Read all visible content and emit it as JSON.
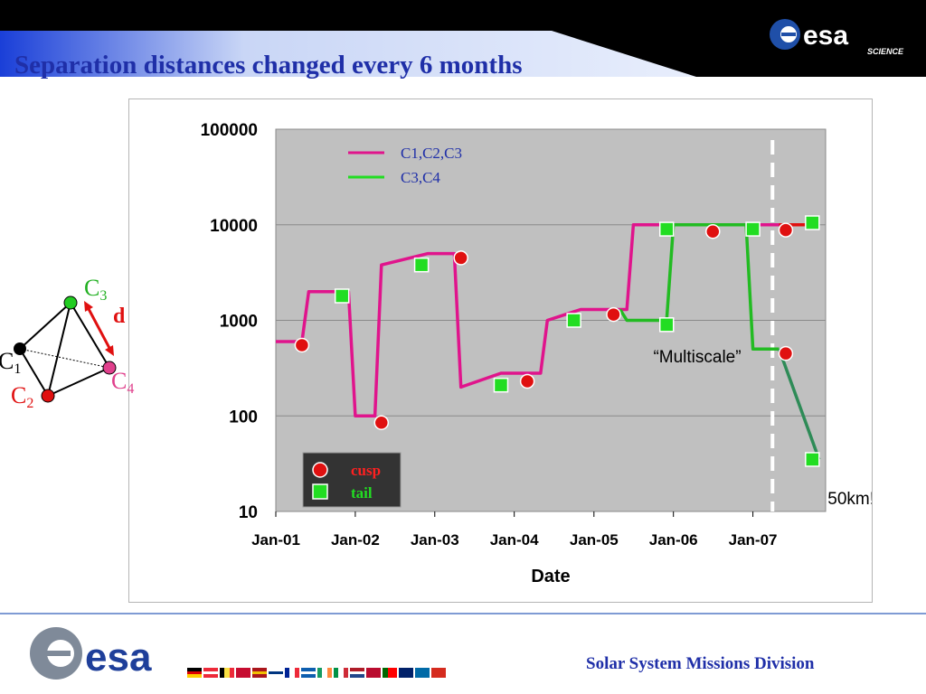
{
  "slide": {
    "title": "Separation distances changed every 6 months",
    "footer": "Solar System Missions Division",
    "logo_text": "esa",
    "logo_subtext": "SCIENCE"
  },
  "tetrahedron": {
    "c1": "C",
    "c1_sub": "1",
    "c2": "C",
    "c2_sub": "2",
    "c3": "C",
    "c3_sub": "3",
    "c4": "C",
    "c4_sub": "4",
    "distance_label": "d",
    "colors": {
      "c1": "#000000",
      "c2": "#e01010",
      "c3": "#22c022",
      "c4": "#e0408c"
    }
  },
  "chart_data": {
    "type": "line",
    "xlabel": "Date",
    "ylabel": "",
    "yscale": "log",
    "ylim": [
      10,
      100000
    ],
    "xlim": [
      "2001-01",
      "2007-12"
    ],
    "x_tick_labels": [
      "Jan-01",
      "Jan-02",
      "Jan-03",
      "Jan-04",
      "Jan-05",
      "Jan-06",
      "Jan-07"
    ],
    "y_tick_labels": [
      "100000",
      "10000",
      "1000",
      "100",
      "10"
    ],
    "y_ticks": [
      100000,
      10000,
      1000,
      100,
      10
    ],
    "plot_background": "#c0c0c0",
    "series": [
      {
        "name": "C1,C2,C3",
        "color": "#e0148c",
        "x": [
          "2001-01-01",
          "2001-05-01",
          "2001-06-01",
          "2001-12-01",
          "2002-01-01",
          "2002-04-01",
          "2002-05-01",
          "2002-12-01",
          "2003-02-01",
          "2003-04-01",
          "2003-05-01",
          "2003-11-01",
          "2004-01-01",
          "2004-05-01",
          "2004-06-01",
          "2004-11-01",
          "2005-05-01",
          "2005-06-01",
          "2005-07-01",
          "2006-01-01",
          "2007-06-01"
        ],
        "y": [
          600,
          600,
          2000,
          2000,
          100,
          100,
          3800,
          5000,
          5000,
          5000,
          200,
          280,
          280,
          280,
          1000,
          1300,
          1300,
          1300,
          10000,
          10000,
          10000
        ]
      },
      {
        "name": "C3,C4",
        "color": "#22bb22",
        "x": [
          "2005-05-01",
          "2005-06-01",
          "2005-12-01",
          "2006-01-01",
          "2006-12-01",
          "2007-01-01",
          "2007-05-01"
        ],
        "y": [
          1300,
          1000,
          1000,
          10000,
          10000,
          500,
          500
        ]
      },
      {
        "name": "",
        "color": "#e01010",
        "x": [
          "2007-05-01",
          "2007-11-01"
        ],
        "y": [
          10000,
          10000
        ]
      },
      {
        "name": "",
        "color": "#2e8b57",
        "x": [
          "2007-05-01",
          "2007-11-01"
        ],
        "y": [
          500,
          35
        ]
      }
    ],
    "markers": {
      "cusp": {
        "label": "cusp",
        "color": "#e01010",
        "x": [
          "2001-05-01",
          "2002-05-01",
          "2003-05-01",
          "2004-03-01",
          "2005-04-01",
          "2006-07-01",
          "2007-06-01",
          "2007-06-01"
        ],
        "y": [
          550,
          85,
          4500,
          230,
          1150,
          8500,
          8800,
          450
        ]
      },
      "tail": {
        "label": "tail",
        "color": "#22dd22",
        "x": [
          "2001-11-01",
          "2002-11-01",
          "2003-11-01",
          "2004-10-01",
          "2005-12-01",
          "2005-12-01",
          "2007-01-01",
          "2007-10-01",
          "2007-10-01"
        ],
        "y": [
          1800,
          3800,
          210,
          1000,
          900,
          9000,
          9000,
          10500,
          35
        ]
      }
    },
    "vertical_dashed_line_x": "2007-04-01",
    "annotations": [
      {
        "text": "“Multiscale”",
        "x": "2006-01-01",
        "y": 550
      },
      {
        "text": "50km!",
        "x": "2007-10-01",
        "y": 13
      }
    ]
  }
}
